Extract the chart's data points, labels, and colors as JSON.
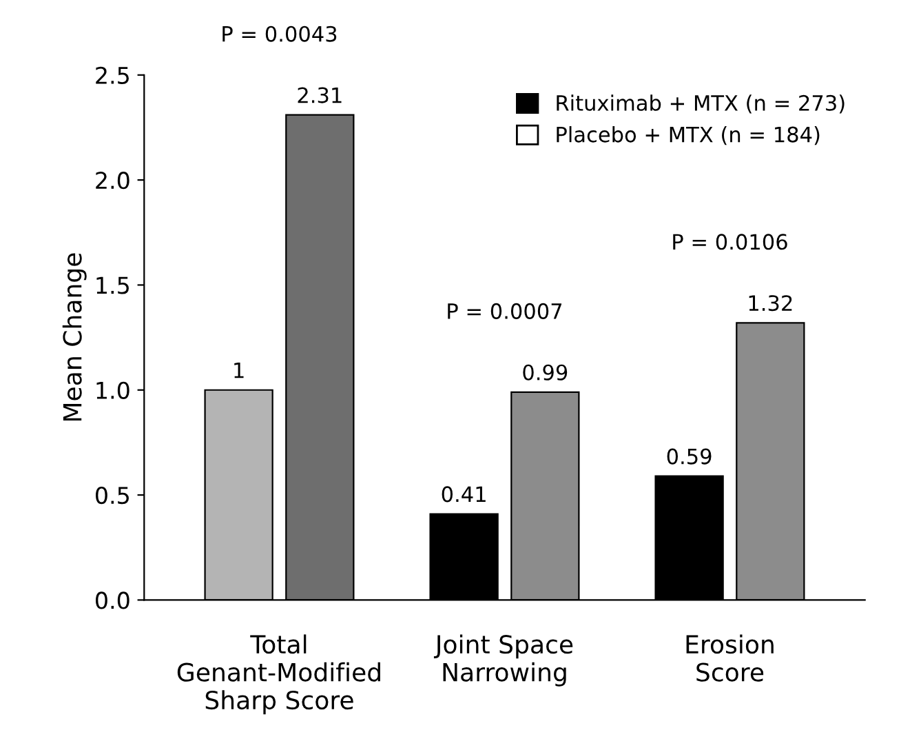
{
  "chart_data": {
    "type": "bar",
    "ylabel": "Mean Change",
    "categories": [
      "Total\nGenant-Modified\nSharp Score",
      "Joint Space\nNarrowing",
      "Erosion\nScore"
    ],
    "series": [
      {
        "name": "Rituximab + MTX (n = 273)",
        "color": "#000000",
        "colors": [
          "#b4b4b4",
          "#000000",
          "#000000"
        ],
        "values": [
          1,
          0.41,
          0.59
        ]
      },
      {
        "name": "Placebo + MTX (n = 184)",
        "color": "#ffffff",
        "colors": [
          "#6e6e6e",
          "#8c8c8c",
          "#8c8c8c"
        ],
        "values": [
          2.31,
          0.99,
          1.32
        ]
      }
    ],
    "ylim": [
      0,
      2.5
    ],
    "yticks": [
      {
        "value": 0,
        "label": "0.0"
      },
      {
        "value": 0.5,
        "label": "0.5"
      },
      {
        "value": 1,
        "label": "1.0"
      },
      {
        "value": 1.5,
        "label": "1.5"
      },
      {
        "value": 2,
        "label": "2.0"
      },
      {
        "value": 2.5,
        "label": "2.5"
      }
    ],
    "data_labels": true,
    "grid": false,
    "legend": "top right",
    "annotations": [
      "P = 0.0043",
      "P = 0.0007",
      "P = 0.0106"
    ]
  }
}
